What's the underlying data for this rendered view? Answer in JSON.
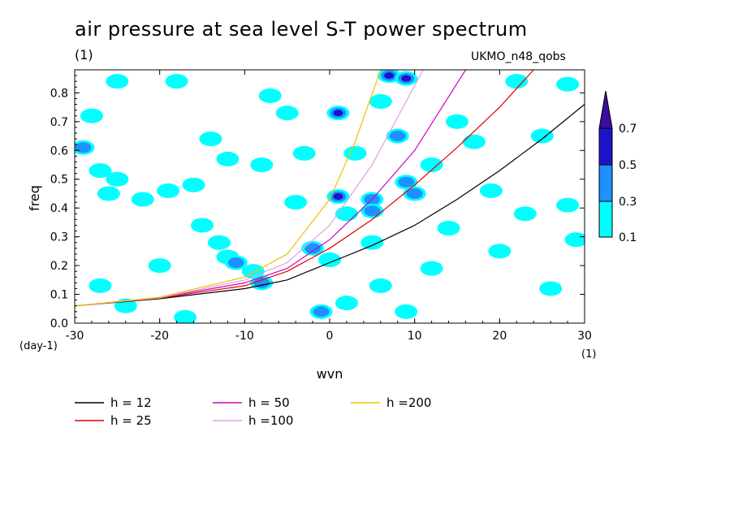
{
  "title": "air pressure at sea level S-T power spectrum",
  "units_label": "(1)",
  "source_label": "UKMO_n48_qobs",
  "colors": {
    "level1": "#00ffff",
    "level2": "#1e90ff",
    "level3": "#1c14c8",
    "level4": "#3a0ca0",
    "h12": "#000000",
    "h25": "#e00000",
    "h50": "#d000c0",
    "h100": "#e0a0e0",
    "h200": "#f0c000"
  },
  "chart_data": {
    "type": "heatmap",
    "title": "air pressure at sea level S-T power spectrum",
    "xlabel": "wvn",
    "ylabel": "freq",
    "x_unit_label": "(1)",
    "y_unit_label": "(day-1)",
    "xlim": [
      -30,
      30
    ],
    "ylim": [
      0,
      0.88
    ],
    "xticks": [
      "-30",
      "-20",
      "-10",
      "0",
      "10",
      "20",
      "30"
    ],
    "yticks": [
      "0.0",
      "0.1",
      "0.2",
      "0.3",
      "0.4",
      "0.5",
      "0.6",
      "0.7",
      "0.8"
    ],
    "colorbar": {
      "levels": [
        "0.1",
        "0.3",
        "0.5",
        "0.7"
      ]
    },
    "blobs": [
      {
        "x": -29,
        "y": 0.61,
        "level": 2
      },
      {
        "x": -28,
        "y": 0.72,
        "level": 1
      },
      {
        "x": -27,
        "y": 0.53,
        "level": 1
      },
      {
        "x": -25,
        "y": 0.5,
        "level": 1
      },
      {
        "x": -22,
        "y": 0.43,
        "level": 1
      },
      {
        "x": -26,
        "y": 0.45,
        "level": 1
      },
      {
        "x": -19,
        "y": 0.46,
        "level": 1
      },
      {
        "x": -16,
        "y": 0.48,
        "level": 1
      },
      {
        "x": -15,
        "y": 0.34,
        "level": 1
      },
      {
        "x": -13,
        "y": 0.28,
        "level": 1
      },
      {
        "x": -12,
        "y": 0.23,
        "level": 1
      },
      {
        "x": -11,
        "y": 0.21,
        "level": 2
      },
      {
        "x": -9,
        "y": 0.18,
        "level": 1
      },
      {
        "x": -8,
        "y": 0.14,
        "level": 2
      },
      {
        "x": -27,
        "y": 0.13,
        "level": 1
      },
      {
        "x": -24,
        "y": 0.06,
        "level": 1
      },
      {
        "x": -25,
        "y": 0.84,
        "level": 1
      },
      {
        "x": -18,
        "y": 0.84,
        "level": 1
      },
      {
        "x": -14,
        "y": 0.64,
        "level": 1
      },
      {
        "x": -12,
        "y": 0.57,
        "level": 1
      },
      {
        "x": -8,
        "y": 0.55,
        "level": 1
      },
      {
        "x": -7,
        "y": 0.79,
        "level": 1
      },
      {
        "x": -5,
        "y": 0.73,
        "level": 1
      },
      {
        "x": -3,
        "y": 0.59,
        "level": 1
      },
      {
        "x": -2,
        "y": 0.26,
        "level": 2
      },
      {
        "x": 0,
        "y": 0.22,
        "level": 1
      },
      {
        "x": -1,
        "y": 0.04,
        "level": 2
      },
      {
        "x": 1,
        "y": 0.73,
        "level": 3
      },
      {
        "x": 1,
        "y": 0.44,
        "level": 3
      },
      {
        "x": 2,
        "y": 0.38,
        "level": 1
      },
      {
        "x": 5,
        "y": 0.43,
        "level": 2
      },
      {
        "x": 5,
        "y": 0.39,
        "level": 2
      },
      {
        "x": 5,
        "y": 0.28,
        "level": 1
      },
      {
        "x": 7,
        "y": 0.86,
        "level": 3
      },
      {
        "x": 9,
        "y": 0.85,
        "level": 4
      },
      {
        "x": 8,
        "y": 0.65,
        "level": 2
      },
      {
        "x": 9,
        "y": 0.49,
        "level": 2
      },
      {
        "x": 10,
        "y": 0.45,
        "level": 2
      },
      {
        "x": 6,
        "y": 0.77,
        "level": 1
      },
      {
        "x": 12,
        "y": 0.55,
        "level": 1
      },
      {
        "x": 15,
        "y": 0.7,
        "level": 1
      },
      {
        "x": 17,
        "y": 0.63,
        "level": 1
      },
      {
        "x": 19,
        "y": 0.46,
        "level": 1
      },
      {
        "x": 14,
        "y": 0.33,
        "level": 1
      },
      {
        "x": 12,
        "y": 0.19,
        "level": 1
      },
      {
        "x": 6,
        "y": 0.13,
        "level": 1
      },
      {
        "x": 2,
        "y": 0.07,
        "level": 1
      },
      {
        "x": 9,
        "y": 0.04,
        "level": 1
      },
      {
        "x": 20,
        "y": 0.25,
        "level": 1
      },
      {
        "x": 23,
        "y": 0.38,
        "level": 1
      },
      {
        "x": 25,
        "y": 0.65,
        "level": 1
      },
      {
        "x": 28,
        "y": 0.41,
        "level": 1
      },
      {
        "x": 26,
        "y": 0.12,
        "level": 1
      },
      {
        "x": 29,
        "y": 0.29,
        "level": 1
      },
      {
        "x": 22,
        "y": 0.84,
        "level": 1
      },
      {
        "x": 28,
        "y": 0.83,
        "level": 1
      },
      {
        "x": 3,
        "y": 0.59,
        "level": 1
      },
      {
        "x": -4,
        "y": 0.42,
        "level": 1
      },
      {
        "x": -20,
        "y": 0.2,
        "level": 1
      },
      {
        "x": -17,
        "y": 0.02,
        "level": 1
      }
    ],
    "series": [
      {
        "name": "h = 12",
        "color": "#000000",
        "x": [
          -30,
          -20,
          -10,
          -5,
          0,
          5,
          10,
          15,
          20,
          25,
          30
        ],
        "y": [
          0.06,
          0.085,
          0.12,
          0.15,
          0.21,
          0.27,
          0.34,
          0.43,
          0.53,
          0.64,
          0.76
        ]
      },
      {
        "name": "h = 25",
        "color": "#e00000",
        "x": [
          -30,
          -20,
          -10,
          -5,
          0,
          5,
          10,
          15,
          20,
          24
        ],
        "y": [
          0.06,
          0.087,
          0.13,
          0.18,
          0.26,
          0.36,
          0.48,
          0.61,
          0.75,
          0.88
        ]
      },
      {
        "name": "h = 50",
        "color": "#d000c0",
        "x": [
          -30,
          -20,
          -10,
          -5,
          0,
          5,
          10,
          16
        ],
        "y": [
          0.06,
          0.088,
          0.14,
          0.19,
          0.29,
          0.43,
          0.6,
          0.88
        ]
      },
      {
        "name": "h =100",
        "color": "#e0a0e0",
        "x": [
          -30,
          -20,
          -10,
          -5,
          0,
          5,
          11
        ],
        "y": [
          0.06,
          0.088,
          0.15,
          0.21,
          0.34,
          0.55,
          0.88
        ]
      },
      {
        "name": "h =200",
        "color": "#f0c000",
        "x": [
          -30,
          -20,
          -10,
          -5,
          0,
          3,
          6
        ],
        "y": [
          0.06,
          0.09,
          0.16,
          0.24,
          0.43,
          0.63,
          0.88
        ]
      }
    ]
  }
}
